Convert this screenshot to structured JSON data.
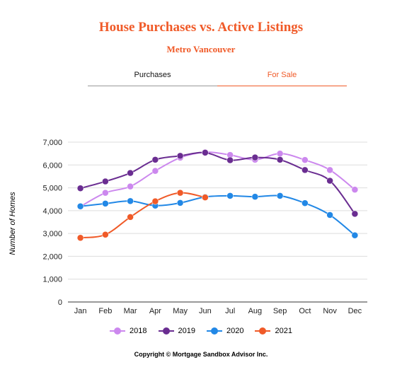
{
  "header": {
    "title": "House Purchases vs. Active Listings",
    "subtitle": "Metro Vancouver",
    "title_color": "#f05a28"
  },
  "tabs": [
    {
      "label": "Purchases",
      "active": false,
      "color": "#111111",
      "underline_color": "#999999"
    },
    {
      "label": "For Sale",
      "active": true,
      "color": "#f05a28",
      "underline_color": "#f05a28"
    }
  ],
  "footer": {
    "copyright": "Copyright © Mortgage Sandbox Advisor Inc."
  },
  "chart_data": {
    "type": "line",
    "title": "",
    "xlabel": "",
    "ylabel": "Number of Homes",
    "categories": [
      "Jan",
      "Feb",
      "Mar",
      "Apr",
      "May",
      "Jun",
      "Jul",
      "Aug",
      "Sep",
      "Oct",
      "Nov",
      "Dec"
    ],
    "ylim": [
      0,
      7000
    ],
    "yticks": [
      0,
      1000,
      2000,
      3000,
      4000,
      5000,
      6000,
      7000
    ],
    "ytick_labels": [
      "0",
      "1,000",
      "2,000",
      "3,000",
      "4,000",
      "5,000",
      "6,000",
      "7,000"
    ],
    "grid": true,
    "legend_position": "bottom",
    "series": [
      {
        "name": "2018",
        "color": "#cc88ee",
        "values": [
          4180,
          4780,
          5060,
          5740,
          6320,
          6560,
          6440,
          6230,
          6500,
          6220,
          5780,
          4920
        ]
      },
      {
        "name": "2019",
        "color": "#6a2d91",
        "values": [
          4980,
          5280,
          5650,
          6230,
          6400,
          6540,
          6210,
          6330,
          6230,
          5780,
          5310,
          3860
        ]
      },
      {
        "name": "2020",
        "color": "#2288e6",
        "values": [
          4190,
          4310,
          4420,
          4220,
          4340,
          4600,
          4650,
          4610,
          4650,
          4330,
          3810,
          2920
        ]
      },
      {
        "name": "2021",
        "color": "#f05a28",
        "values": [
          2810,
          2950,
          3720,
          4410,
          4780,
          4580,
          null,
          null,
          null,
          null,
          null,
          null
        ]
      }
    ]
  }
}
